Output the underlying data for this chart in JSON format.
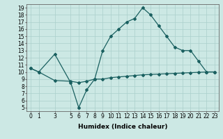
{
  "xlabel": "Humidex (Indice chaleur)",
  "bg_color": "#cce8e4",
  "line_color": "#1a6060",
  "grid_color": "#aacfcb",
  "series1_x": [
    0,
    1,
    3,
    5,
    6,
    7,
    8,
    9,
    10,
    11,
    12,
    13,
    14,
    15,
    16,
    17,
    18,
    19,
    20,
    21,
    22,
    23
  ],
  "series1_y": [
    10.5,
    10.0,
    12.5,
    8.5,
    5.0,
    7.5,
    9.0,
    13.0,
    15.0,
    16.0,
    17.0,
    17.5,
    19.0,
    18.0,
    16.5,
    15.0,
    13.5,
    13.0,
    13.0,
    11.5,
    10.0,
    10.0
  ],
  "series2_x": [
    0,
    1,
    3,
    5,
    6,
    7,
    8,
    9,
    10,
    11,
    12,
    13,
    14,
    15,
    16,
    17,
    18,
    19,
    20,
    21,
    22,
    23
  ],
  "series2_y": [
    10.5,
    10.0,
    8.8,
    8.7,
    8.5,
    8.7,
    9.0,
    9.0,
    9.2,
    9.3,
    9.4,
    9.5,
    9.6,
    9.65,
    9.7,
    9.75,
    9.8,
    9.85,
    9.9,
    9.95,
    10.0,
    10.0
  ],
  "xlim": [
    -0.5,
    23.5
  ],
  "ylim": [
    4.5,
    19.5
  ],
  "xticks": [
    0,
    1,
    3,
    5,
    6,
    7,
    8,
    9,
    10,
    11,
    12,
    13,
    14,
    15,
    16,
    17,
    18,
    19,
    20,
    21,
    22,
    23
  ],
  "yticks": [
    5,
    6,
    7,
    8,
    9,
    10,
    11,
    12,
    13,
    14,
    15,
    16,
    17,
    18,
    19
  ],
  "tick_fontsize": 5.5,
  "xlabel_fontsize": 6.5,
  "marker": "D",
  "markersize": 2.0,
  "linewidth": 0.9
}
